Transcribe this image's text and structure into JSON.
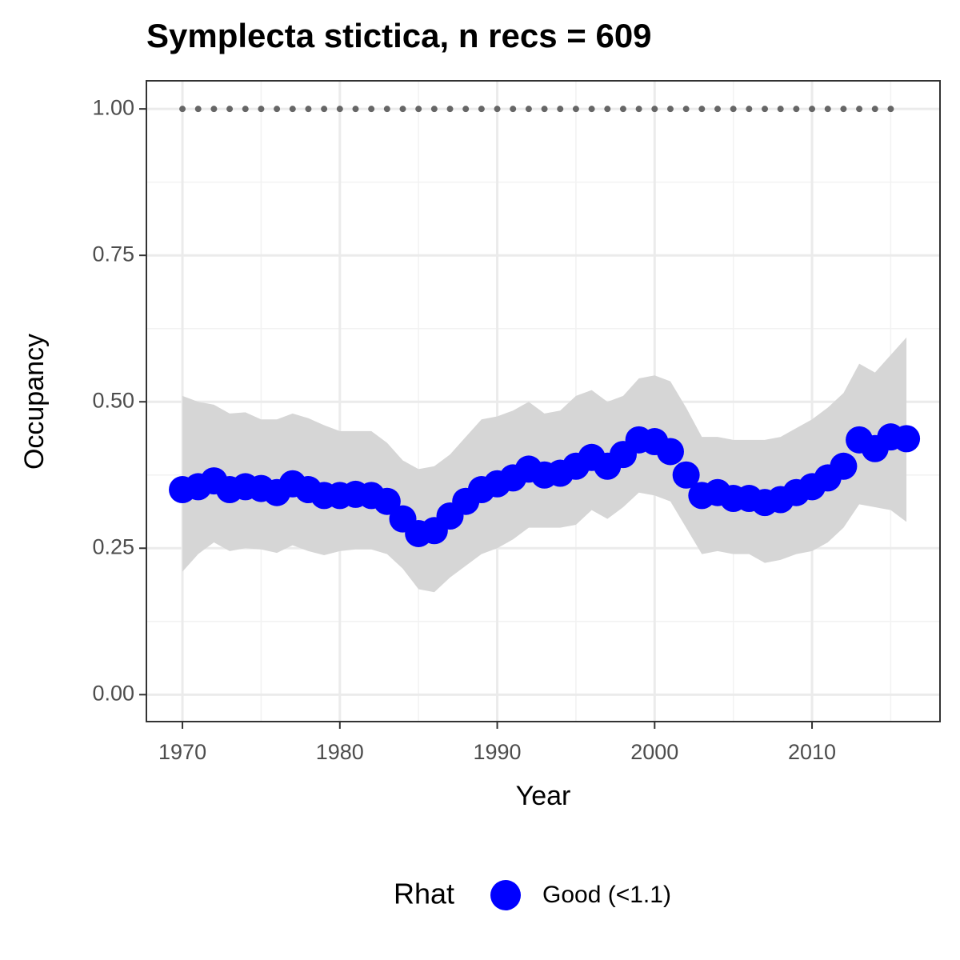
{
  "chart_data": {
    "type": "scatter",
    "title": "Symplecta stictica, n recs = 609",
    "x_label": "Year",
    "y_label": "Occupancy",
    "legend_title": "Rhat",
    "x": [
      1970,
      1971,
      1972,
      1973,
      1974,
      1975,
      1976,
      1977,
      1978,
      1979,
      1980,
      1981,
      1982,
      1983,
      1984,
      1985,
      1986,
      1987,
      1988,
      1989,
      1990,
      1991,
      1992,
      1993,
      1994,
      1995,
      1996,
      1997,
      1998,
      1999,
      2000,
      2001,
      2002,
      2003,
      2004,
      2005,
      2006,
      2007,
      2008,
      2009,
      2010,
      2011,
      2012,
      2013,
      2014,
      2015,
      2016
    ],
    "series": [
      {
        "name": "Good (<1.1)",
        "color": "#0000ff",
        "band_color": "#d6d6d6",
        "values": [
          0.35,
          0.355,
          0.365,
          0.35,
          0.355,
          0.352,
          0.345,
          0.36,
          0.35,
          0.34,
          0.34,
          0.342,
          0.34,
          0.33,
          0.3,
          0.275,
          0.28,
          0.305,
          0.33,
          0.35,
          0.36,
          0.37,
          0.385,
          0.375,
          0.378,
          0.39,
          0.405,
          0.39,
          0.41,
          0.435,
          0.432,
          0.415,
          0.375,
          0.34,
          0.345,
          0.335,
          0.335,
          0.328,
          0.333,
          0.345,
          0.355,
          0.37,
          0.39,
          0.435,
          0.42,
          0.44,
          0.437
        ],
        "upper": [
          0.51,
          0.5,
          0.495,
          0.48,
          0.482,
          0.47,
          0.47,
          0.48,
          0.472,
          0.46,
          0.45,
          0.45,
          0.45,
          0.43,
          0.4,
          0.385,
          0.39,
          0.41,
          0.44,
          0.47,
          0.475,
          0.485,
          0.5,
          0.48,
          0.485,
          0.51,
          0.52,
          0.5,
          0.51,
          0.54,
          0.545,
          0.535,
          0.49,
          0.44,
          0.44,
          0.435,
          0.435,
          0.435,
          0.44,
          0.455,
          0.47,
          0.49,
          0.515,
          0.565,
          0.55,
          0.58,
          0.61
        ],
        "lower": [
          0.21,
          0.24,
          0.26,
          0.245,
          0.25,
          0.248,
          0.242,
          0.255,
          0.245,
          0.238,
          0.245,
          0.248,
          0.248,
          0.24,
          0.215,
          0.18,
          0.175,
          0.2,
          0.22,
          0.24,
          0.25,
          0.265,
          0.285,
          0.285,
          0.285,
          0.29,
          0.315,
          0.3,
          0.32,
          0.345,
          0.34,
          0.33,
          0.285,
          0.24,
          0.245,
          0.24,
          0.24,
          0.225,
          0.23,
          0.24,
          0.245,
          0.26,
          0.285,
          0.325,
          0.32,
          0.315,
          0.295
        ]
      },
      {
        "color": "#666666",
        "x": [
          1970,
          1971,
          1972,
          1973,
          1974,
          1975,
          1976,
          1977,
          1978,
          1979,
          1980,
          1981,
          1982,
          1983,
          1984,
          1985,
          1986,
          1987,
          1988,
          1989,
          1990,
          1991,
          1992,
          1993,
          1994,
          1995,
          1996,
          1997,
          1998,
          1999,
          2000,
          2001,
          2002,
          2003,
          2004,
          2005,
          2006,
          2007,
          2008,
          2009,
          2010,
          2011,
          2012,
          2013,
          2014,
          2015
        ],
        "values": [
          1,
          1,
          1,
          1,
          1,
          1,
          1,
          1,
          1,
          1,
          1,
          1,
          1,
          1,
          1,
          1,
          1,
          1,
          1,
          1,
          1,
          1,
          1,
          1,
          1,
          1,
          1,
          1,
          1,
          1,
          1,
          1,
          1,
          1,
          1,
          1,
          1,
          1,
          1,
          1,
          1,
          1,
          1,
          1,
          1,
          1
        ]
      }
    ],
    "xlim": [
      1967.71,
      2018.13
    ],
    "ylim": [
      -0.046,
      1.048
    ],
    "xticks": [
      1970,
      1980,
      1990,
      2000,
      2010
    ],
    "yticks": [
      {
        "value": 0,
        "label": "0.00"
      },
      {
        "value": 0.25,
        "label": "0.25"
      },
      {
        "value": 0.5,
        "label": "0.50"
      },
      {
        "value": 0.75,
        "label": "0.75"
      },
      {
        "value": 1,
        "label": "1.00"
      }
    ],
    "x_minor_grid": [
      1975,
      1985,
      1995,
      2005,
      2015
    ],
    "y_minor_grid": [
      0.125,
      0.375,
      0.625,
      0.875
    ],
    "grid": true
  }
}
